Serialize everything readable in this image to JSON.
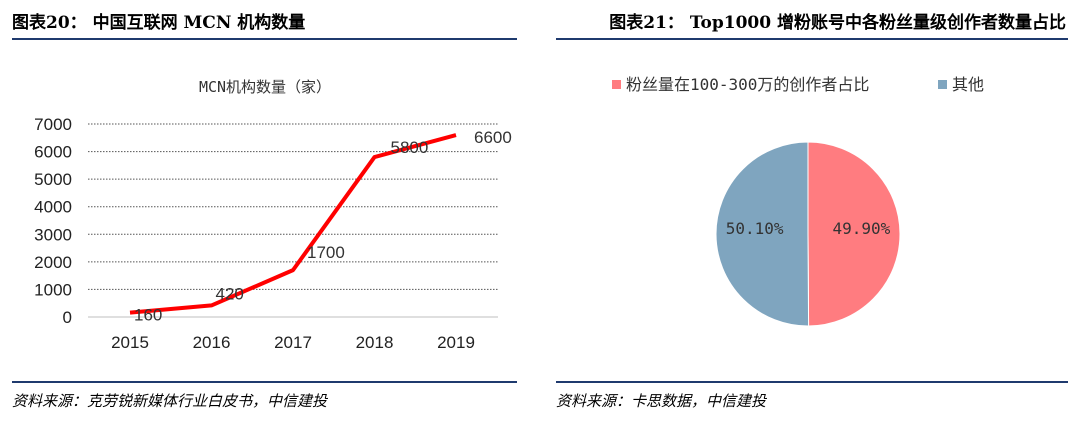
{
  "header": {
    "left_title": "图表20： 中国互联网 MCN 机构数量",
    "right_title": "图表21： Top1000 增粉账号中各粉丝量级创作者数量占比"
  },
  "footer": {
    "left_source": "资料来源：克劳锐新媒体行业白皮书，中信建投",
    "right_source": "资料来源：卡思数据，中信建投"
  },
  "colors": {
    "rule": "#1f3a6e",
    "line": "#ff0000",
    "pie_primary": "#ff7c80",
    "pie_other": "#7fa5bf"
  },
  "chart_data": [
    {
      "type": "line",
      "title": "MCN机构数量（家）",
      "categories": [
        "2015",
        "2016",
        "2017",
        "2018",
        "2019"
      ],
      "series": [
        {
          "name": "MCN机构数量（家）",
          "values": [
            160,
            420,
            1700,
            5800,
            6600
          ]
        }
      ],
      "data_labels": [
        "160",
        "420",
        "1700",
        "5800",
        "6600"
      ],
      "yticks": [
        "0",
        "1000",
        "2000",
        "3000",
        "4000",
        "5000",
        "6000",
        "7000"
      ],
      "ylim": [
        0,
        7000
      ],
      "grid": true,
      "legend": "none"
    },
    {
      "type": "pie",
      "labels": [
        "粉丝量在100-300万的创作者占比",
        "其他"
      ],
      "values": [
        49.9,
        50.1
      ],
      "data_labels": [
        "49.90%",
        "50.10%"
      ],
      "legend": "top"
    }
  ]
}
